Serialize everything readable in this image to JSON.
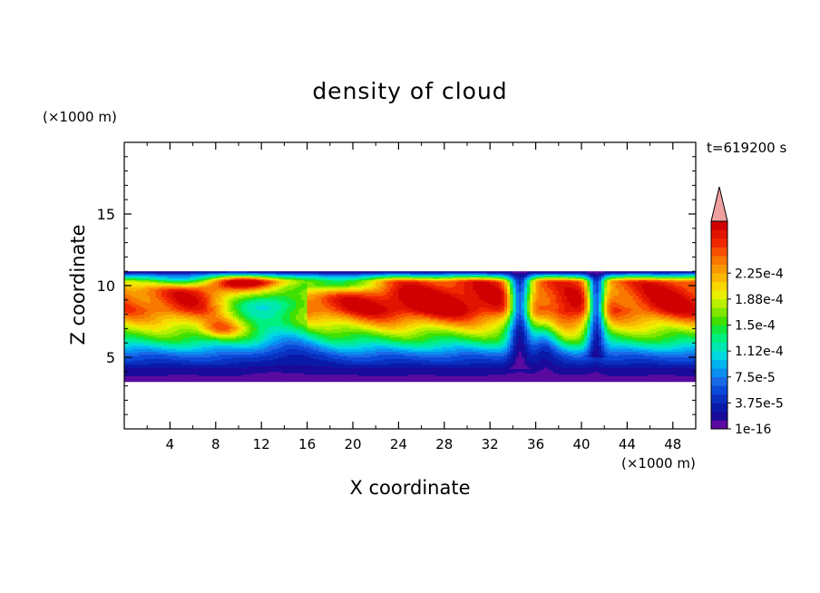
{
  "chart_data": {
    "type": "heatmap",
    "title": "density of cloud",
    "xlabel": "X coordinate",
    "ylabel": "Z coordinate",
    "x_unit": "(×1000 m)",
    "y_unit": "(×1000 m)",
    "time_label": "t=619200 s",
    "xlim": [
      0,
      50
    ],
    "ylim": [
      0,
      20
    ],
    "xticks": [
      4,
      8,
      12,
      16,
      20,
      24,
      28,
      32,
      36,
      40,
      44,
      48
    ],
    "yticks": [
      5,
      10,
      15
    ],
    "colorbar": {
      "tick_labels": [
        "1e-16",
        "3.75e-5",
        "7.5e-5",
        "1.12e-4",
        "1.5e-4",
        "1.88e-4",
        "2.25e-4"
      ],
      "levels": 24,
      "max_value": 0.00024,
      "extend": "max",
      "colors": [
        "#5a0aa0",
        "#1a0a9a",
        "#0a1aa8",
        "#0a30c0",
        "#0a4ad8",
        "#1a6ae8",
        "#0a8ef0",
        "#00b4f0",
        "#00d8e0",
        "#00e8b0",
        "#00f080",
        "#10e840",
        "#40e000",
        "#80e800",
        "#b8f000",
        "#e8f000",
        "#f8d800",
        "#f8b800",
        "#f89800",
        "#f87800",
        "#f85000",
        "#f02800",
        "#e01400",
        "#d00000"
      ],
      "extend_color": "#f0a0a0"
    },
    "cloud_layer": {
      "bottom_z": 3.3,
      "top_z": 11.0,
      "peak_density": 0.00023,
      "core_z": [
        7.5,
        10.0
      ]
    }
  }
}
